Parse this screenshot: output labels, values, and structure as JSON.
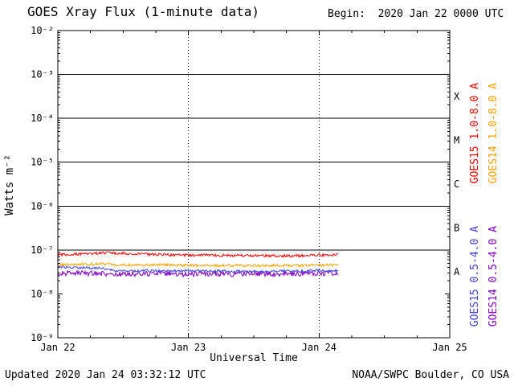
{
  "header": {
    "begin_label": "Begin:  2020 Jan 22 0000 UTC"
  },
  "footer": {
    "updated": "Updated 2020 Jan 24 03:32:12 UTC",
    "credit": "NOAA/SWPC Boulder, CO USA"
  },
  "chart_data": {
    "type": "line",
    "title": "GOES Xray Flux (1-minute data)",
    "xlabel": "Universal Time",
    "ylabel": "Watts m⁻²",
    "x_axis": {
      "tick_labels": [
        "Jan 22",
        "Jan 23",
        "Jan 24",
        "Jan 25"
      ],
      "tick_hours": [
        0,
        24,
        48,
        72
      ],
      "range_hours": [
        0,
        72
      ],
      "dotted_gridline_hours": [
        24,
        48
      ],
      "minor_tick_step_hours": 6
    },
    "y_axis": {
      "scale": "log",
      "tick_labels": [
        "10⁻²",
        "10⁻³",
        "10⁻⁴",
        "10⁻⁵",
        "10⁻⁶",
        "10⁻⁷",
        "10⁻⁸",
        "10⁻⁹"
      ],
      "tick_exponents": [
        -2,
        -3,
        -4,
        -5,
        -6,
        -7,
        -8,
        -9
      ],
      "range_exponents": [
        -9,
        -2
      ],
      "class_boundary_exponents": [
        -3,
        -4,
        -5,
        -6,
        -7
      ]
    },
    "flux_classes": [
      {
        "label": "X",
        "exponent": -3.5
      },
      {
        "label": "M",
        "exponent": -4.5
      },
      {
        "label": "C",
        "exponent": -5.5
      },
      {
        "label": "B",
        "exponent": -6.5
      },
      {
        "label": "A",
        "exponent": -7.5
      }
    ],
    "series": [
      {
        "name": "GOES15 1.0-8.0 A",
        "color": "#ff0000",
        "noise_decades": 0.03,
        "points": [
          [
            0,
            7.8e-08
          ],
          [
            3,
            8e-08
          ],
          [
            6,
            8.3e-08
          ],
          [
            9,
            8.6e-08
          ],
          [
            12,
            8.4e-08
          ],
          [
            15,
            8.1e-08
          ],
          [
            18,
            7.9e-08
          ],
          [
            21,
            7.7e-08
          ],
          [
            24,
            7.6e-08
          ],
          [
            27,
            7.7e-08
          ],
          [
            30,
            7.5e-08
          ],
          [
            33,
            7.5e-08
          ],
          [
            36,
            7.4e-08
          ],
          [
            39,
            7.4e-08
          ],
          [
            42,
            7.3e-08
          ],
          [
            45,
            7.4e-08
          ],
          [
            48,
            7.6e-08
          ],
          [
            51.5,
            7.8e-08
          ]
        ]
      },
      {
        "name": "GOES14 1.0-8.0 A",
        "color": "#ffa000",
        "noise_decades": 0.03,
        "points": [
          [
            0,
            4.6e-08
          ],
          [
            4,
            4.7e-08
          ],
          [
            8,
            4.8e-08
          ],
          [
            12,
            4.6e-08
          ],
          [
            16,
            4.5e-08
          ],
          [
            20,
            4.6e-08
          ],
          [
            24,
            4.5e-08
          ],
          [
            28,
            4.4e-08
          ],
          [
            32,
            4.5e-08
          ],
          [
            36,
            4.4e-08
          ],
          [
            40,
            4.5e-08
          ],
          [
            44,
            4.4e-08
          ],
          [
            48,
            4.5e-08
          ],
          [
            51.5,
            4.6e-08
          ]
        ]
      },
      {
        "name": "GOES15 0.5-4.0 A",
        "color": "#4040e0",
        "noise_decades": 0.028,
        "points": [
          [
            0,
            4.1e-08
          ],
          [
            3,
            4e-08
          ],
          [
            6,
            3.9e-08
          ],
          [
            8,
            3.8e-08
          ],
          [
            10,
            3.5e-08
          ],
          [
            12,
            3.3e-08
          ],
          [
            16,
            3.4e-08
          ],
          [
            20,
            3.3e-08
          ],
          [
            24,
            3.4e-08
          ],
          [
            28,
            3.3e-08
          ],
          [
            32,
            3.3e-08
          ],
          [
            36,
            3.2e-08
          ],
          [
            40,
            3.3e-08
          ],
          [
            44,
            3.3e-08
          ],
          [
            48,
            3.4e-08
          ],
          [
            51.5,
            3.4e-08
          ]
        ]
      },
      {
        "name": "GOES14 0.5-4.0 A",
        "color": "#8000c0",
        "noise_decades": 0.06,
        "points": [
          [
            0,
            2.9e-08
          ],
          [
            4,
            3e-08
          ],
          [
            8,
            2.9e-08
          ],
          [
            12,
            2.8e-08
          ],
          [
            16,
            2.9e-08
          ],
          [
            20,
            2.9e-08
          ],
          [
            24,
            2.8e-08
          ],
          [
            28,
            2.9e-08
          ],
          [
            32,
            2.8e-08
          ],
          [
            36,
            2.9e-08
          ],
          [
            40,
            2.8e-08
          ],
          [
            44,
            2.9e-08
          ],
          [
            48,
            2.9e-08
          ],
          [
            51.5,
            2.9e-08
          ]
        ]
      }
    ]
  }
}
